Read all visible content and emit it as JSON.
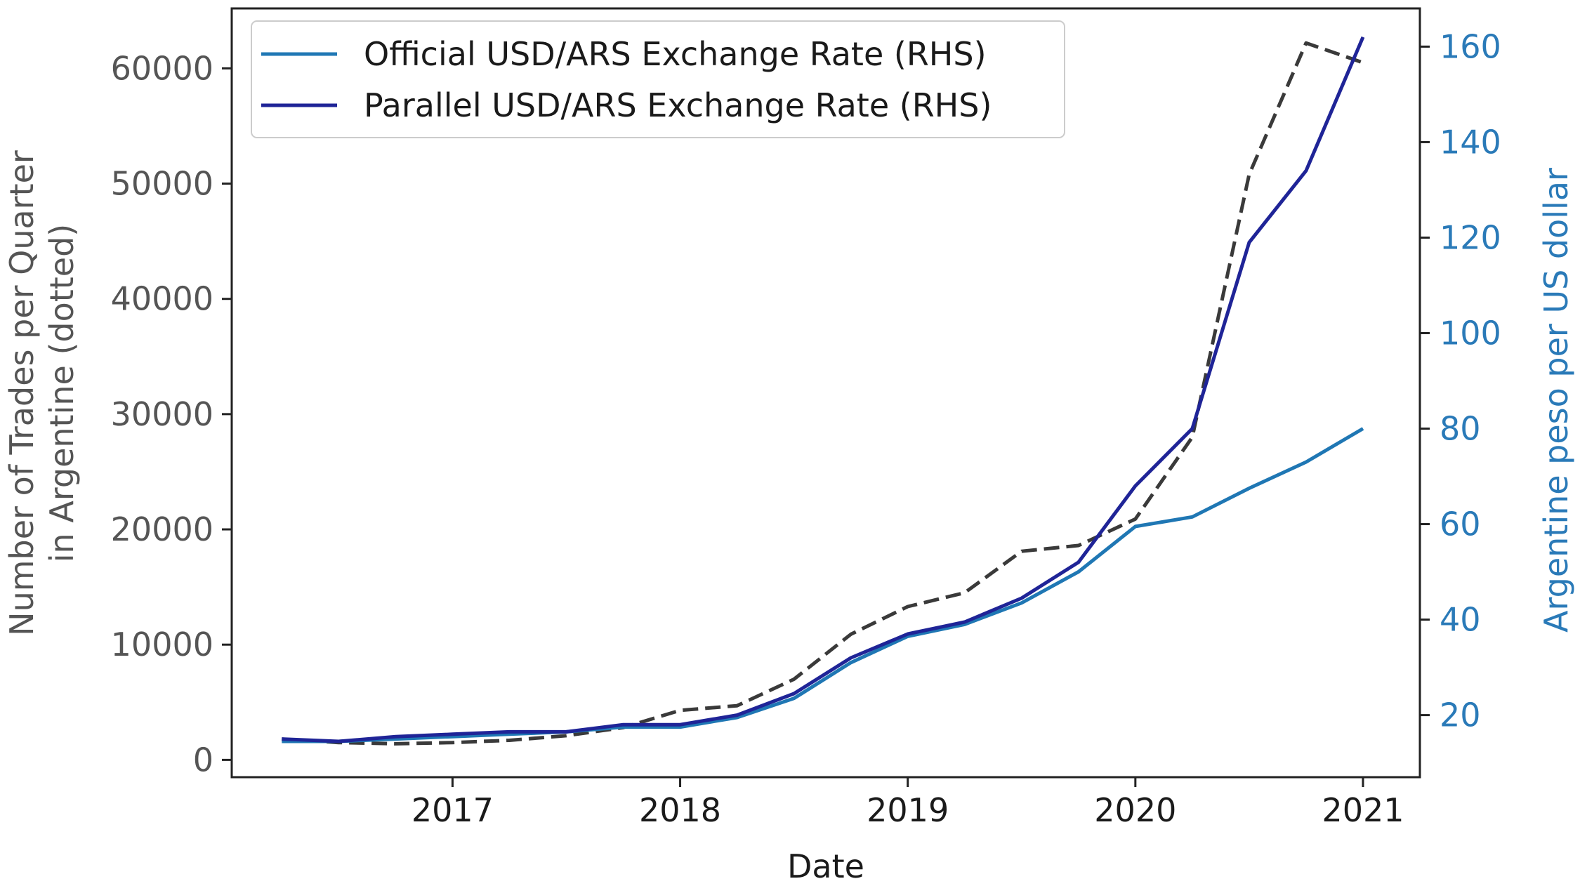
{
  "chart_data": {
    "type": "line",
    "xlabel": "Date",
    "ylabel_left_line1": "Number of Trades per Quarter",
    "ylabel_left_line2": "in Argentine  (dotted)",
    "ylabel_right": "Argentine peso per US dollar",
    "x_tick_labels": [
      "2017",
      "2018",
      "2019",
      "2020",
      "2021"
    ],
    "x_ticks": [
      2017,
      2018,
      2019,
      2020,
      2021
    ],
    "xlim": [
      2016.03,
      2021.25
    ],
    "y_left_ticks": [
      0,
      10000,
      20000,
      30000,
      40000,
      50000,
      60000
    ],
    "y_left_lim": [
      -1500,
      65200
    ],
    "y_right_ticks": [
      20,
      40,
      60,
      80,
      100,
      120,
      140,
      160
    ],
    "y_right_lim": [
      7,
      168
    ],
    "x": [
      2016.25,
      2016.5,
      2016.75,
      2017.0,
      2017.25,
      2017.5,
      2017.75,
      2018.0,
      2018.25,
      2018.5,
      2018.75,
      2019.0,
      2019.25,
      2019.5,
      2019.75,
      2020.0,
      2020.25,
      2020.5,
      2020.75,
      2021.0
    ],
    "trades_series": {
      "axis": "left",
      "style": "dashed",
      "values": [
        1800,
        1500,
        1400,
        1500,
        1700,
        2100,
        2800,
        4300,
        4700,
        7000,
        10900,
        13300,
        14500,
        18100,
        18600,
        20900,
        28000,
        50800,
        62200,
        60500
      ]
    },
    "legend_position": "top-left",
    "series": [
      {
        "name": "Official USD/ARS Exchange Rate (RHS)",
        "axis": "right",
        "color": "#1f77b4",
        "values": [
          14.5,
          14.5,
          15.0,
          15.5,
          16.0,
          16.5,
          17.5,
          17.5,
          19.5,
          23.5,
          31.0,
          36.5,
          39.0,
          43.5,
          50.0,
          59.5,
          61.5,
          67.5,
          73.0,
          80.0
        ]
      },
      {
        "name": "Parallel USD/ARS Exchange Rate (RHS)",
        "axis": "right",
        "color": "#1f2497",
        "values": [
          15.0,
          14.5,
          15.5,
          16.0,
          16.5,
          16.5,
          18.0,
          18.0,
          20.0,
          24.5,
          32.0,
          37.0,
          39.5,
          44.5,
          52.0,
          68.0,
          80.0,
          119.0,
          134.0,
          162.0
        ]
      }
    ],
    "colors": {
      "dashed": "#3a3a3a",
      "right_axis": "#2a7ab8",
      "left_axis_text": "#555555",
      "frame": "#222222"
    }
  }
}
